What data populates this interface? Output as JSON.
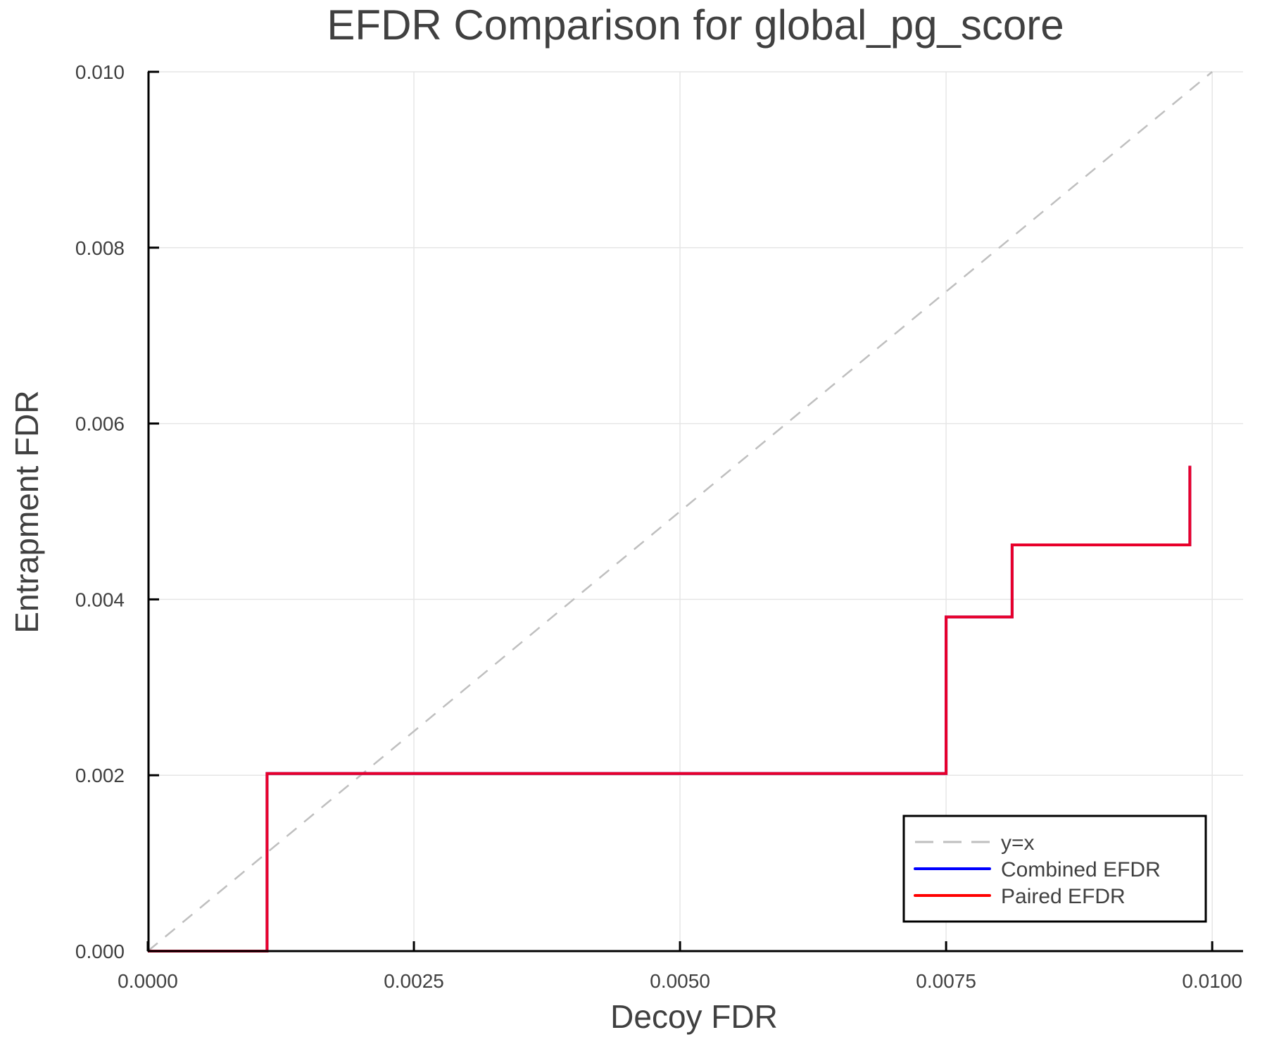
{
  "chart_data": {
    "type": "line",
    "title": "EFDR Comparison for global_pg_score",
    "xlabel": "Decoy FDR",
    "ylabel": "Entrapment FDR",
    "xlim": [
      0.0,
      0.01029
    ],
    "ylim": [
      0.0,
      0.01
    ],
    "grid": true,
    "legend_position": "bottom-right",
    "x_ticks": [
      0.0,
      0.0025,
      0.005,
      0.0075,
      0.01
    ],
    "x_tick_labels": [
      "0.0000",
      "0.0025",
      "0.0050",
      "0.0075",
      "0.0100"
    ],
    "y_ticks": [
      0.0,
      0.002,
      0.004,
      0.006,
      0.008,
      0.01
    ],
    "y_tick_labels": [
      "0.000",
      "0.002",
      "0.004",
      "0.006",
      "0.008",
      "0.010"
    ],
    "series": [
      {
        "name": "y=x",
        "style": "dashed",
        "color": "#bfbfbf",
        "x": [
          0.0,
          0.01
        ],
        "y": [
          0.0,
          0.01
        ]
      },
      {
        "name": "Combined EFDR",
        "style": "step",
        "color": "#0000ff",
        "x": [
          0.0,
          0.00112,
          0.00112,
          0.0075,
          0.0075,
          0.00812,
          0.00812,
          0.00979,
          0.00979
        ],
        "y": [
          0.0,
          0.0,
          0.00202,
          0.00202,
          0.0038,
          0.0038,
          0.00462,
          0.00462,
          0.00552
        ]
      },
      {
        "name": "Paired EFDR",
        "style": "step",
        "color": "#ff0000",
        "x": [
          0.0,
          0.00112,
          0.00112,
          0.0075,
          0.0075,
          0.00812,
          0.00812,
          0.00979,
          0.00979
        ],
        "y": [
          0.0,
          0.0,
          0.00202,
          0.00202,
          0.0038,
          0.0038,
          0.00462,
          0.00462,
          0.00552
        ]
      }
    ]
  },
  "legend": {
    "items": [
      {
        "label": "y=x",
        "color": "#bfbfbf",
        "style": "dashed"
      },
      {
        "label": "Combined EFDR",
        "color": "#0000ff",
        "style": "solid"
      },
      {
        "label": "Paired EFDR",
        "color": "#ff0000",
        "style": "solid"
      }
    ]
  },
  "colors": {
    "overlap_line": "#e8002a",
    "grid": "#e6e6e6",
    "text": "#404040",
    "axis": "#000000"
  }
}
